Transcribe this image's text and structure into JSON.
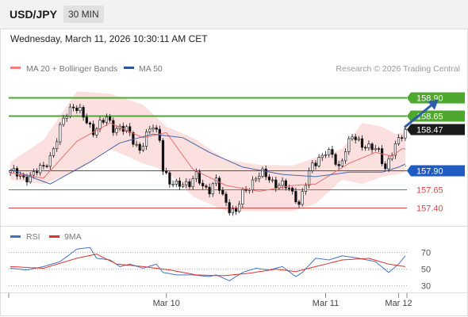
{
  "header": {
    "symbol": "USD/JPY",
    "timeframe": "30 MIN"
  },
  "datetime": "Wednesday, March 11, 2026 10:30:11 AM CET",
  "chart_data": {
    "type": "candlestick",
    "legend": [
      {
        "name": "MA 20 + Bollinger Bands",
        "color": "#f08080"
      },
      {
        "name": "MA 50",
        "color": "#2f5597"
      }
    ],
    "watermark": "Research © 2026 Trading Central",
    "ylim": [
      157.15,
      159.2
    ],
    "last_price": 158.47,
    "levels": [
      {
        "value": 158.9,
        "label": "158.90",
        "color": "#4ea72e",
        "style": "resistance"
      },
      {
        "value": 158.65,
        "label": "158.65",
        "color": "#4ea72e",
        "style": "resistance"
      },
      {
        "value": 157.9,
        "label": "157.90",
        "color": "#1f5bc0",
        "style": "pivot"
      },
      {
        "value": 157.65,
        "label": "157.65",
        "color": "#d94a4a",
        "style": "support"
      },
      {
        "value": 157.4,
        "label": "157.40",
        "color": "#d94a4a",
        "style": "support"
      }
    ],
    "price_path": [
      [
        0,
        157.9
      ],
      [
        2,
        157.84
      ],
      [
        4,
        157.8
      ],
      [
        7,
        157.86
      ],
      [
        10,
        157.95
      ],
      [
        12,
        158.1
      ],
      [
        14,
        158.32
      ],
      [
        16,
        158.6
      ],
      [
        18,
        158.75
      ],
      [
        19,
        158.8
      ],
      [
        21,
        158.7
      ],
      [
        23,
        158.55
      ],
      [
        25,
        158.45
      ],
      [
        27,
        158.55
      ],
      [
        29,
        158.6
      ],
      [
        31,
        158.48
      ],
      [
        33,
        158.5
      ],
      [
        35,
        158.45
      ],
      [
        37,
        158.3
      ],
      [
        39,
        158.2
      ],
      [
        41,
        158.38
      ],
      [
        43,
        158.5
      ],
      [
        45,
        158.35
      ],
      [
        46,
        157.95
      ],
      [
        48,
        157.72
      ],
      [
        50,
        157.7
      ],
      [
        52,
        157.75
      ],
      [
        54,
        157.72
      ],
      [
        56,
        157.82
      ],
      [
        58,
        157.7
      ],
      [
        60,
        157.65
      ],
      [
        62,
        157.75
      ],
      [
        64,
        157.55
      ],
      [
        66,
        157.4
      ],
      [
        68,
        157.33
      ],
      [
        70,
        157.58
      ],
      [
        72,
        157.7
      ],
      [
        74,
        157.82
      ],
      [
        76,
        157.85
      ],
      [
        78,
        157.8
      ],
      [
        80,
        157.72
      ],
      [
        82,
        157.7
      ],
      [
        84,
        157.65
      ],
      [
        86,
        157.55
      ],
      [
        87,
        157.45
      ],
      [
        89,
        157.72
      ],
      [
        91,
        157.98
      ],
      [
        93,
        158.08
      ],
      [
        95,
        158.15
      ],
      [
        97,
        158.1
      ],
      [
        99,
        157.95
      ],
      [
        101,
        158.2
      ],
      [
        103,
        158.35
      ],
      [
        105,
        158.3
      ],
      [
        107,
        158.25
      ],
      [
        109,
        158.2
      ],
      [
        111,
        158.15
      ],
      [
        113,
        157.95
      ],
      [
        115,
        158.15
      ],
      [
        117,
        158.3
      ],
      [
        119,
        158.47
      ]
    ],
    "ma20": [
      [
        0,
        157.87
      ],
      [
        10,
        157.8
      ],
      [
        20,
        158.3
      ],
      [
        30,
        158.55
      ],
      [
        40,
        158.35
      ],
      [
        47,
        158.42
      ],
      [
        55,
        157.92
      ],
      [
        65,
        157.7
      ],
      [
        75,
        157.62
      ],
      [
        85,
        157.7
      ],
      [
        92,
        157.72
      ],
      [
        102,
        158.0
      ],
      [
        110,
        158.15
      ],
      [
        115,
        158.1
      ],
      [
        118,
        158.2
      ]
    ],
    "ma50": [
      [
        0,
        157.92
      ],
      [
        12,
        157.72
      ],
      [
        24,
        158.02
      ],
      [
        33,
        158.28
      ],
      [
        43,
        158.4
      ],
      [
        52,
        158.35
      ],
      [
        60,
        158.15
      ],
      [
        70,
        157.95
      ],
      [
        82,
        157.85
      ],
      [
        92,
        157.82
      ],
      [
        102,
        157.88
      ],
      [
        112,
        157.88
      ],
      [
        117,
        157.95
      ],
      [
        119,
        157.99
      ]
    ],
    "bb_upper": [
      [
        0,
        158.02
      ],
      [
        10,
        158.32
      ],
      [
        20,
        158.98
      ],
      [
        30,
        158.95
      ],
      [
        40,
        158.8
      ],
      [
        47,
        158.5
      ],
      [
        55,
        158.35
      ],
      [
        65,
        158.05
      ],
      [
        75,
        157.98
      ],
      [
        85,
        157.97
      ],
      [
        92,
        158.08
      ],
      [
        100,
        158.2
      ],
      [
        106,
        158.55
      ],
      [
        112,
        158.5
      ],
      [
        116,
        158.4
      ],
      [
        119,
        158.43
      ]
    ],
    "bb_lower": [
      [
        0,
        157.78
      ],
      [
        10,
        157.72
      ],
      [
        20,
        157.9
      ],
      [
        30,
        158.2
      ],
      [
        40,
        158.0
      ],
      [
        47,
        157.9
      ],
      [
        55,
        157.55
      ],
      [
        65,
        157.35
      ],
      [
        75,
        157.35
      ],
      [
        85,
        157.35
      ],
      [
        92,
        157.45
      ],
      [
        100,
        157.78
      ],
      [
        106,
        157.72
      ],
      [
        112,
        157.82
      ],
      [
        116,
        157.85
      ],
      [
        119,
        157.88
      ]
    ],
    "forecast_arrow": {
      "from": [
        119,
        158.5
      ],
      "to": [
        129,
        158.87
      ]
    },
    "rsi": {
      "legend": [
        {
          "name": "RSI",
          "color": "#4472c4"
        },
        {
          "name": "9MA",
          "color": "#e03030"
        }
      ],
      "ticks": [
        30,
        50,
        70
      ],
      "ylim": [
        20,
        80
      ],
      "rsi": [
        [
          0,
          50
        ],
        [
          5,
          48
        ],
        [
          10,
          52
        ],
        [
          15,
          58
        ],
        [
          20,
          73
        ],
        [
          24,
          75
        ],
        [
          26,
          62
        ],
        [
          30,
          60
        ],
        [
          33,
          52
        ],
        [
          36,
          55
        ],
        [
          40,
          50
        ],
        [
          44,
          55
        ],
        [
          46,
          45
        ],
        [
          50,
          42
        ],
        [
          55,
          42
        ],
        [
          60,
          40
        ],
        [
          62,
          42
        ],
        [
          66,
          35
        ],
        [
          70,
          45
        ],
        [
          74,
          50
        ],
        [
          78,
          48
        ],
        [
          82,
          52
        ],
        [
          86,
          40
        ],
        [
          88,
          45
        ],
        [
          92,
          62
        ],
        [
          96,
          60
        ],
        [
          100,
          65
        ],
        [
          105,
          62
        ],
        [
          110,
          58
        ],
        [
          114,
          45
        ],
        [
          117,
          55
        ],
        [
          119,
          65
        ]
      ],
      "ma9": [
        [
          0,
          52
        ],
        [
          10,
          50
        ],
        [
          20,
          62
        ],
        [
          26,
          67
        ],
        [
          32,
          55
        ],
        [
          40,
          52
        ],
        [
          48,
          48
        ],
        [
          56,
          42
        ],
        [
          64,
          41
        ],
        [
          72,
          44
        ],
        [
          80,
          49
        ],
        [
          86,
          46
        ],
        [
          92,
          52
        ],
        [
          100,
          60
        ],
        [
          108,
          62
        ],
        [
          114,
          55
        ],
        [
          119,
          52
        ]
      ]
    },
    "x_labels": [
      {
        "label": "Mar 10",
        "index": 47
      },
      {
        "label": "Mar 11",
        "index": 95
      },
      {
        "label": "Mar 12",
        "index": 117
      }
    ]
  }
}
